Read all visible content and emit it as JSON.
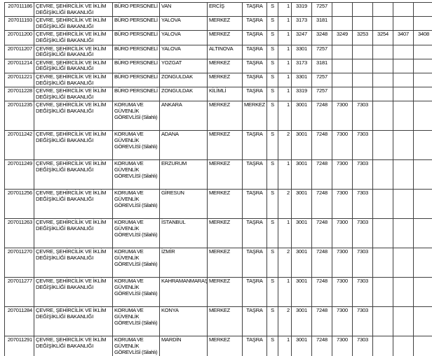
{
  "colors": {
    "background": "#ffffff",
    "grid_border": "#404040",
    "text": "#000000"
  },
  "table": {
    "rows": [
      {
        "id": "207011186",
        "ministry": "ÇEVRE, ŞEHİRCİLİK VE İKLİM DEĞİŞİKLİĞİ BAKANLIĞI",
        "position": "BÜRO PERSONELİ",
        "province": "VAN",
        "district": "ERCİŞ",
        "org_type": "TAŞRA",
        "status": "S",
        "count": "1",
        "codes": [
          "3319",
          "7257"
        ]
      },
      {
        "id": "207011193",
        "ministry": "ÇEVRE, ŞEHİRCİLİK VE İKLİM DEĞİŞİKLİĞİ BAKANLIĞI",
        "position": "BÜRO PERSONELİ",
        "province": "YALOVA",
        "district": "MERKEZ",
        "org_type": "TAŞRA",
        "status": "S",
        "count": "1",
        "codes": [
          "3173",
          "3181"
        ]
      },
      {
        "id": "207011200",
        "ministry": "ÇEVRE, ŞEHİRCİLİK VE İKLİM DEĞİŞİKLİĞİ BAKANLIĞI",
        "position": "BÜRO PERSONELİ",
        "province": "YALOVA",
        "district": "MERKEZ",
        "org_type": "TAŞRA",
        "status": "S",
        "count": "1",
        "codes": [
          "3247",
          "3248",
          "3249",
          "3253",
          "3254",
          "3407",
          "3408"
        ]
      },
      {
        "id": "207011207",
        "ministry": "ÇEVRE, ŞEHİRCİLİK VE İKLİM DEĞİŞİKLİĞİ BAKANLIĞI",
        "position": "BÜRO PERSONELİ",
        "province": "YALOVA",
        "district": "ALTINOVA",
        "org_type": "TAŞRA",
        "status": "S",
        "count": "1",
        "codes": [
          "3301",
          "7257"
        ]
      },
      {
        "id": "207011214",
        "ministry": "ÇEVRE, ŞEHİRCİLİK VE İKLİM DEĞİŞİKLİĞİ BAKANLIĞI",
        "position": "BÜRO PERSONELİ",
        "province": "YOZGAT",
        "district": "MERKEZ",
        "org_type": "TAŞRA",
        "status": "S",
        "count": "1",
        "codes": [
          "3173",
          "3181"
        ]
      },
      {
        "id": "207011221",
        "ministry": "ÇEVRE, ŞEHİRCİLİK VE İKLİM DEĞİŞİKLİĞİ BAKANLIĞI",
        "position": "BÜRO PERSONELİ",
        "province": "ZONGULDAK",
        "district": "MERKEZ",
        "org_type": "TAŞRA",
        "status": "S",
        "count": "1",
        "codes": [
          "3301",
          "7257"
        ]
      },
      {
        "id": "207011228",
        "ministry": "ÇEVRE, ŞEHİRCİLİK VE İKLİM DEĞİŞİKLİĞİ BAKANLIĞI",
        "position": "BÜRO PERSONELİ",
        "province": "ZONGULDAK",
        "district": "KİLİMLİ",
        "org_type": "TAŞRA",
        "status": "S",
        "count": "1",
        "codes": [
          "3319",
          "7257"
        ]
      },
      {
        "id": "207011235",
        "ministry": "ÇEVRE, ŞEHİRCİLİK VE İKLİM DEĞİŞİKLİĞİ BAKANLIĞI",
        "position": "KORUMA VE GÜVENLİK GÖREVLİSİ (Silahlı)",
        "province": "ANKARA",
        "district": "MERKEZ",
        "org_type": "MERKEZ",
        "status": "S",
        "count": "1",
        "codes": [
          "3001",
          "7248",
          "7300",
          "7303"
        ]
      },
      {
        "id": "207011242",
        "ministry": "ÇEVRE, ŞEHİRCİLİK VE İKLİM DEĞİŞİKLİĞİ BAKANLIĞI",
        "position": "KORUMA VE GÜVENLİK GÖREVLİSİ (Silahlı)",
        "province": "ADANA",
        "district": "MERKEZ",
        "org_type": "TAŞRA",
        "status": "S",
        "count": "2",
        "codes": [
          "3001",
          "7248",
          "7300",
          "7303"
        ]
      },
      {
        "id": "207011249",
        "ministry": "ÇEVRE, ŞEHİRCİLİK VE İKLİM DEĞİŞİKLİĞİ BAKANLIĞI",
        "position": "KORUMA VE GÜVENLİK GÖREVLİSİ (Silahlı)",
        "province": "ERZURUM",
        "district": "MERKEZ",
        "org_type": "TAŞRA",
        "status": "S",
        "count": "1",
        "codes": [
          "3001",
          "7248",
          "7300",
          "7303"
        ]
      },
      {
        "id": "207011256",
        "ministry": "ÇEVRE, ŞEHİRCİLİK VE İKLİM DEĞİŞİKLİĞİ BAKANLIĞI",
        "position": "KORUMA VE GÜVENLİK GÖREVLİSİ (Silahlı)",
        "province": "GİRESUN",
        "district": "MERKEZ",
        "org_type": "TAŞRA",
        "status": "S",
        "count": "2",
        "codes": [
          "3001",
          "7248",
          "7300",
          "7303"
        ]
      },
      {
        "id": "207011263",
        "ministry": "ÇEVRE, ŞEHİRCİLİK VE İKLİM DEĞİŞİKLİĞİ BAKANLIĞI",
        "position": "KORUMA VE GÜVENLİK GÖREVLİSİ (Silahlı)",
        "province": "İSTANBUL",
        "district": "MERKEZ",
        "org_type": "TAŞRA",
        "status": "S",
        "count": "1",
        "codes": [
          "3001",
          "7248",
          "7300",
          "7303"
        ]
      },
      {
        "id": "207011270",
        "ministry": "ÇEVRE, ŞEHİRCİLİK VE İKLİM DEĞİŞİKLİĞİ BAKANLIĞI",
        "position": "KORUMA VE GÜVENLİK GÖREVLİSİ (Silahlı)",
        "province": "İZMİR",
        "district": "MERKEZ",
        "org_type": "TAŞRA",
        "status": "S",
        "count": "2",
        "codes": [
          "3001",
          "7248",
          "7300",
          "7303"
        ]
      },
      {
        "id": "207011277",
        "ministry": "ÇEVRE, ŞEHİRCİLİK VE İKLİM DEĞİŞİKLİĞİ BAKANLIĞI",
        "position": "KORUMA VE GÜVENLİK GÖREVLİSİ (Silahlı)",
        "province": "KAHRAMANMARAŞ",
        "district": "MERKEZ",
        "org_type": "TAŞRA",
        "status": "S",
        "count": "1",
        "codes": [
          "3001",
          "7248",
          "7300",
          "7303"
        ]
      },
      {
        "id": "207011284",
        "ministry": "ÇEVRE, ŞEHİRCİLİK VE İKLİM DEĞİŞİKLİĞİ BAKANLIĞI",
        "position": "KORUMA VE GÜVENLİK GÖREVLİSİ (Silahlı)",
        "province": "KONYA",
        "district": "MERKEZ",
        "org_type": "TAŞRA",
        "status": "S",
        "count": "2",
        "codes": [
          "3001",
          "7248",
          "7300",
          "7303"
        ]
      },
      {
        "id": "207011291",
        "ministry": "ÇEVRE, ŞEHİRCİLİK VE İKLİM DEĞİŞİKLİĞİ BAKANLIĞI",
        "position": "KORUMA VE GÜVENLİK GÖREVLİSİ (Silahlı)",
        "province": "MARDİN",
        "district": "MERKEZ",
        "org_type": "TAŞRA",
        "status": "S",
        "count": "1",
        "codes": [
          "3001",
          "7248",
          "7300",
          "7303"
        ]
      }
    ]
  }
}
